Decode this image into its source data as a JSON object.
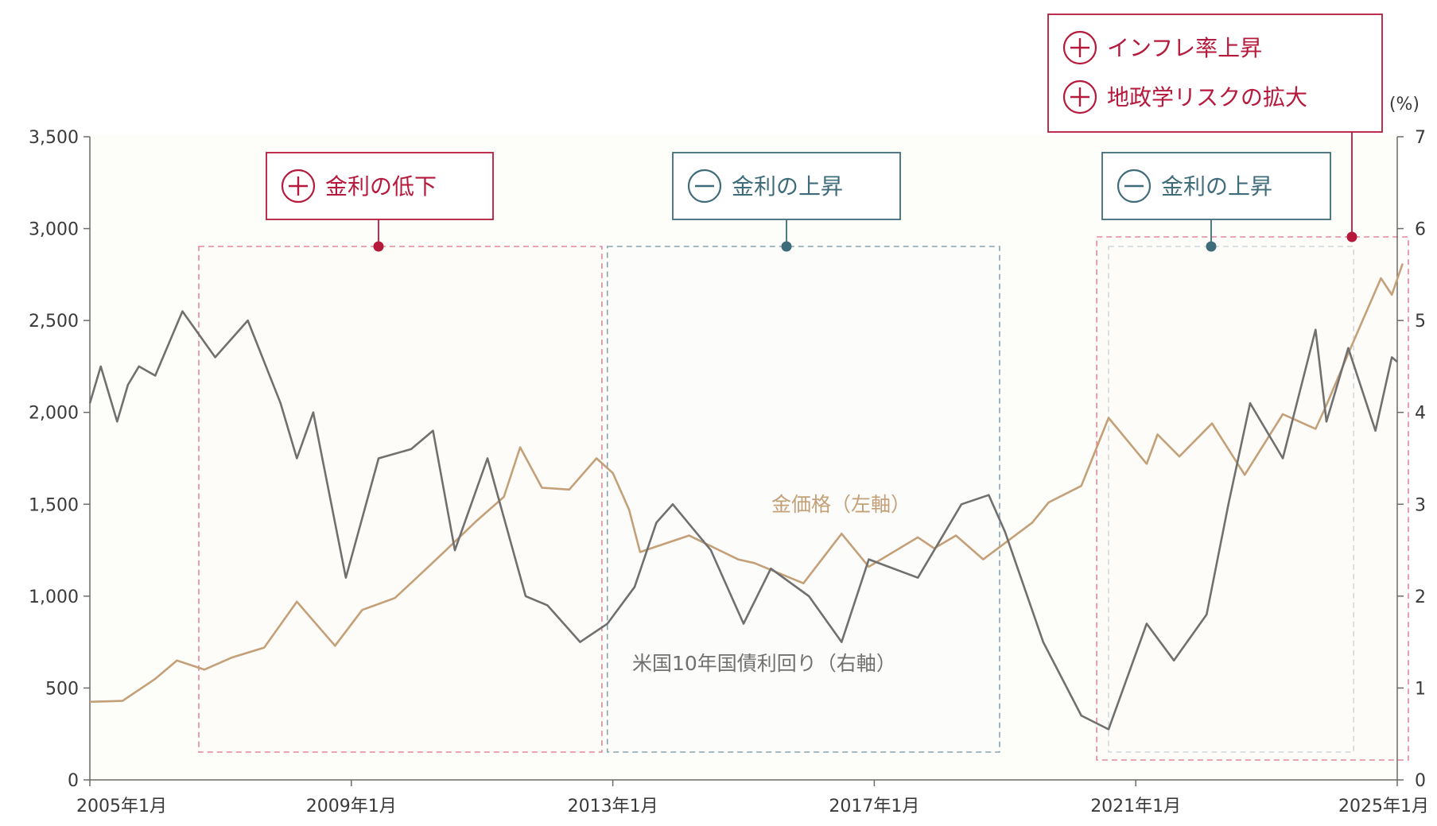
{
  "chart_data": {
    "type": "line",
    "title": "",
    "unit_right": "(%)",
    "x_ticks": [
      "2005年1月",
      "2009年1月",
      "2013年1月",
      "2017年1月",
      "2021年1月",
      "2025年1月"
    ],
    "x_range": [
      "2005-01",
      "2025-01"
    ],
    "y_left": {
      "ticks": [
        "0",
        "500",
        "1,000",
        "1,500",
        "2,000",
        "2,500",
        "3,000",
        "3,500"
      ],
      "ylim": [
        0,
        3500
      ]
    },
    "y_right": {
      "ticks": [
        "0",
        "1",
        "2",
        "3",
        "4",
        "5",
        "6",
        "7"
      ],
      "ylim": [
        0,
        7
      ]
    },
    "grid": false,
    "series": [
      {
        "name": "金価格（左軸）",
        "axis": "left",
        "color": "#c4a079",
        "points": [
          [
            "2005-01",
            425
          ],
          [
            "2005-07",
            430
          ],
          [
            "2006-01",
            550
          ],
          [
            "2006-05",
            650
          ],
          [
            "2006-10",
            600
          ],
          [
            "2007-03",
            665
          ],
          [
            "2007-09",
            720
          ],
          [
            "2008-03",
            970
          ],
          [
            "2008-10",
            730
          ],
          [
            "2009-03",
            925
          ],
          [
            "2009-09",
            990
          ],
          [
            "2010-01",
            1100
          ],
          [
            "2010-06",
            1240
          ],
          [
            "2010-12",
            1410
          ],
          [
            "2011-05",
            1540
          ],
          [
            "2011-08",
            1810
          ],
          [
            "2011-12",
            1590
          ],
          [
            "2012-05",
            1580
          ],
          [
            "2012-10",
            1750
          ],
          [
            "2013-01",
            1670
          ],
          [
            "2013-04",
            1470
          ],
          [
            "2013-06",
            1240
          ],
          [
            "2014-03",
            1330
          ],
          [
            "2014-12",
            1200
          ],
          [
            "2015-03",
            1180
          ],
          [
            "2015-12",
            1070
          ],
          [
            "2016-07",
            1340
          ],
          [
            "2016-12",
            1160
          ],
          [
            "2017-09",
            1320
          ],
          [
            "2017-12",
            1260
          ],
          [
            "2018-04",
            1330
          ],
          [
            "2018-09",
            1200
          ],
          [
            "2019-06",
            1400
          ],
          [
            "2019-09",
            1510
          ],
          [
            "2020-03",
            1600
          ],
          [
            "2020-08",
            1970
          ],
          [
            "2021-03",
            1720
          ],
          [
            "2021-05",
            1880
          ],
          [
            "2021-09",
            1760
          ],
          [
            "2022-03",
            1940
          ],
          [
            "2022-09",
            1660
          ],
          [
            "2023-04",
            1990
          ],
          [
            "2023-10",
            1910
          ],
          [
            "2023-12",
            2040
          ],
          [
            "2024-04",
            2320
          ],
          [
            "2024-10",
            2730
          ],
          [
            "2024-12",
            2640
          ],
          [
            "2025-02",
            2810
          ]
        ]
      },
      {
        "name": "米国10年国債利回り（右軸）",
        "axis": "right",
        "color": "#707070",
        "points": [
          [
            "2005-01",
            4.1
          ],
          [
            "2005-03",
            4.5
          ],
          [
            "2005-06",
            3.9
          ],
          [
            "2005-08",
            4.3
          ],
          [
            "2005-10",
            4.5
          ],
          [
            "2006-01",
            4.4
          ],
          [
            "2006-06",
            5.1
          ],
          [
            "2006-12",
            4.6
          ],
          [
            "2007-06",
            5.0
          ],
          [
            "2007-12",
            4.1
          ],
          [
            "2008-03",
            3.5
          ],
          [
            "2008-06",
            4.0
          ],
          [
            "2008-12",
            2.2
          ],
          [
            "2009-06",
            3.5
          ],
          [
            "2009-12",
            3.6
          ],
          [
            "2010-04",
            3.8
          ],
          [
            "2010-08",
            2.5
          ],
          [
            "2011-02",
            3.5
          ],
          [
            "2011-09",
            2.0
          ],
          [
            "2012-01",
            1.9
          ],
          [
            "2012-07",
            1.5
          ],
          [
            "2012-12",
            1.7
          ],
          [
            "2013-05",
            2.1
          ],
          [
            "2013-09",
            2.8
          ],
          [
            "2013-12",
            3.0
          ],
          [
            "2014-07",
            2.5
          ],
          [
            "2015-01",
            1.7
          ],
          [
            "2015-06",
            2.3
          ],
          [
            "2016-01",
            2.0
          ],
          [
            "2016-07",
            1.5
          ],
          [
            "2016-12",
            2.4
          ],
          [
            "2017-09",
            2.2
          ],
          [
            "2018-05",
            3.0
          ],
          [
            "2018-10",
            3.1
          ],
          [
            "2019-01",
            2.7
          ],
          [
            "2019-08",
            1.5
          ],
          [
            "2020-03",
            0.7
          ],
          [
            "2020-08",
            0.55
          ],
          [
            "2021-03",
            1.7
          ],
          [
            "2021-08",
            1.3
          ],
          [
            "2022-02",
            1.8
          ],
          [
            "2022-06",
            3.0
          ],
          [
            "2022-10",
            4.1
          ],
          [
            "2023-04",
            3.5
          ],
          [
            "2023-10",
            4.9
          ],
          [
            "2023-12",
            3.9
          ],
          [
            "2024-04",
            4.7
          ],
          [
            "2024-09",
            3.8
          ],
          [
            "2024-12",
            4.6
          ],
          [
            "2025-01",
            4.55
          ]
        ]
      }
    ],
    "annotations": [
      {
        "label": "金利の低下",
        "sign": "+",
        "from": "2006-09",
        "to": "2012-11",
        "style": "red"
      },
      {
        "label": "金利の上昇",
        "sign": "−",
        "from": "2012-12",
        "to": "2018-12",
        "style": "teal"
      },
      {
        "label": "金利の上昇",
        "sign": "−",
        "from": "2020-08",
        "to": "2024-05",
        "style": "teal"
      },
      {
        "labels": [
          "インフレ率上昇",
          "地政学リスクの拡大"
        ],
        "sign": "+",
        "from": "2020-07",
        "to": "2025-01",
        "style": "red"
      }
    ]
  },
  "colors": {
    "red": "#b5193b",
    "teal": "#3f6c7a",
    "axis": "#555555"
  }
}
